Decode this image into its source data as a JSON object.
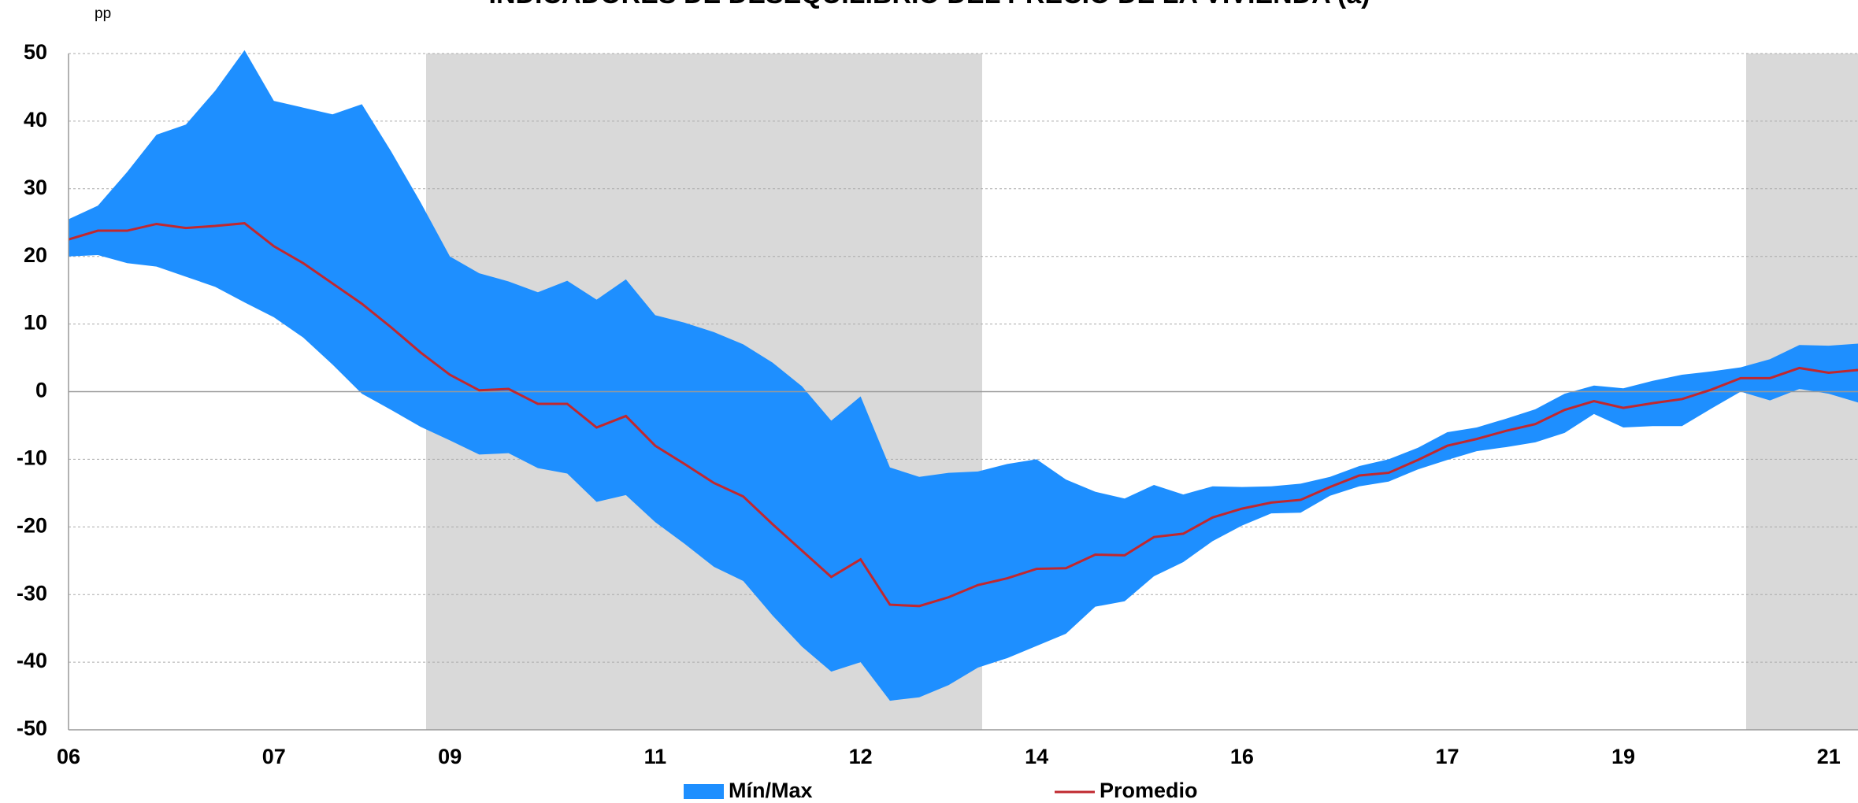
{
  "chart_data": {
    "type": "band-line",
    "title": "INDICADORES DE DESEQUILIBRIO DEL PRECIO DE LA VIVIENDA (a)",
    "y_label": "pp",
    "categories": [
      "06",
      null,
      null,
      null,
      null,
      null,
      null,
      "07",
      null,
      null,
      null,
      null,
      null,
      "09",
      null,
      null,
      null,
      null,
      null,
      null,
      "11",
      null,
      null,
      null,
      null,
      null,
      null,
      "12",
      null,
      null,
      null,
      null,
      null,
      "14",
      null,
      null,
      null,
      null,
      null,
      null,
      "16",
      null,
      null,
      null,
      null,
      null,
      null,
      "17",
      null,
      null,
      null,
      null,
      null,
      "19",
      null,
      null,
      null,
      null,
      null,
      null,
      "21",
      null
    ],
    "series": [
      {
        "name": "Mín/Max",
        "color": "#1e8fff",
        "max": [
          25.5,
          27.5,
          32.5,
          38,
          39.5,
          44.5,
          50.5,
          43,
          42,
          41,
          42.5,
          35.5,
          28,
          20,
          17.5,
          16.3,
          14.7,
          16.4,
          13.6,
          16.6,
          11.3,
          10.2,
          8.8,
          7,
          4.3,
          0.8,
          -4.3,
          -0.7,
          -11.2,
          -12.6,
          -12,
          -11.8,
          -10.7,
          -10,
          -13,
          -14.8,
          -15.8,
          -13.8,
          -15.2,
          -14,
          -14.1,
          -14,
          -13.6,
          -12.6,
          -11,
          -10,
          -8.3,
          -6,
          -5.3,
          -4,
          -2.6,
          -0.3,
          0.9,
          0.5,
          1.6,
          2.5,
          3,
          3.6,
          4.8,
          6.9,
          6.8,
          7.1
        ],
        "min": [
          20,
          20.2,
          19,
          18.5,
          17,
          15.5,
          13.2,
          11,
          8,
          4,
          -0.3,
          -2.7,
          -5.2,
          -7.2,
          -9.3,
          -9.1,
          -11.3,
          -12.1,
          -16.3,
          -15.3,
          -19.3,
          -22.5,
          -25.9,
          -28,
          -33.1,
          -37.7,
          -41.4,
          -40,
          -45.7,
          -45.2,
          -43.4,
          -40.8,
          -39.4,
          -37.6,
          -35.8,
          -31.8,
          -31,
          -27.3,
          -25.2,
          -22.1,
          -19.8,
          -18,
          -17.9,
          -15.4,
          -14,
          -13.3,
          -11.5,
          -10.1,
          -8.8,
          -8.2,
          -7.5,
          -6.1,
          -3.3,
          -5.3,
          -5.1,
          -5.1,
          -2.5,
          0,
          -1.3,
          0.4,
          -0.3,
          -1.6
        ]
      },
      {
        "name": "Promedio",
        "color": "#c0282f",
        "values": [
          22.5,
          23.8,
          23.8,
          24.8,
          24.2,
          24.5,
          24.9,
          21.5,
          19,
          16,
          13,
          9.5,
          5.8,
          2.5,
          0.2,
          0.4,
          -1.8,
          -1.8,
          -5.3,
          -3.6,
          -8,
          -10.7,
          -13.5,
          -15.5,
          -19.6,
          -23.5,
          -27.4,
          -24.8,
          -31.5,
          -31.7,
          -30.4,
          -28.6,
          -27.6,
          -26.2,
          -26.1,
          -24.1,
          -24.2,
          -21.5,
          -21,
          -18.6,
          -17.3,
          -16.4,
          -16,
          -14.1,
          -12.4,
          -12,
          -10.1,
          -8,
          -7,
          -5.8,
          -4.8,
          -2.7,
          -1.4,
          -2.4,
          -1.7,
          -1.1,
          0.3,
          2,
          2,
          3.5,
          2.8,
          3.2
        ]
      }
    ],
    "ylim": [
      -50,
      50
    ],
    "yticks": [
      -50,
      -40,
      -30,
      -20,
      -10,
      0,
      10,
      20,
      30,
      40,
      50
    ],
    "grid": true
  }
}
